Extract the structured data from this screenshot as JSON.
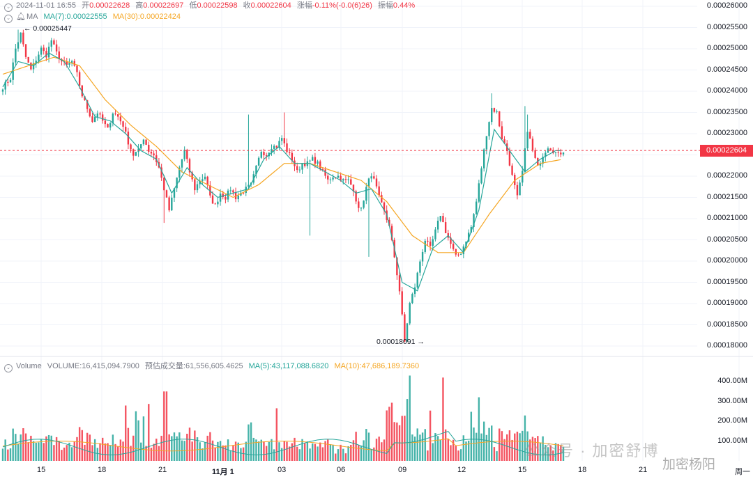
{
  "header": {
    "datetime": "2024-11-01 16:55",
    "open_label": "开",
    "open": "0.00022628",
    "high_label": "高",
    "high": "0.00022697",
    "low_label": "低",
    "low": "0.00022598",
    "close_label": "收",
    "close": "0.00022604",
    "change_label": "涨幅",
    "change": "-0.11%(-0.0(6)26)",
    "amplitude_label": "振幅",
    "amplitude": "0.44%"
  },
  "ma_legend": {
    "label": "MA",
    "ma7": "MA(7):0.00022555",
    "ma30": "MA(30):0.00022424"
  },
  "volume_legend": {
    "label": "Volume",
    "volume": "VOLUME:16,415,094.7900",
    "estimate": "预估成交量:61,556,605.4625",
    "ma5": "MA(5):43,117,088.6820",
    "ma10": "MA(10):47,686,189.7360"
  },
  "annotations": {
    "high_mark": "0.00025447",
    "low_mark": "0.00018091"
  },
  "current_price": "0.00022604",
  "watermark": "公众号 · 加密舒博",
  "watermark2": "加密杨阳",
  "colors": {
    "up": "#26a69a",
    "down": "#f23645",
    "ma7": "#26a69a",
    "ma30": "#f5a623"
  },
  "chart_data": {
    "type": "candlestick",
    "price_axis": {
      "ticks": [
        "0.00026000",
        "0.00025500",
        "0.00025000",
        "0.00024500",
        "0.00024000",
        "0.00023500",
        "0.00023000",
        "0.00022500",
        "0.00022000",
        "0.00021500",
        "0.00021000",
        "0.00020500",
        "0.00020000",
        "0.00019500",
        "0.00019000",
        "0.00018500",
        "0.00018000"
      ],
      "range": [
        0.00018,
        0.00026
      ]
    },
    "volume_axis": {
      "ticks": [
        "400.00M",
        "300.00M",
        "200.00M",
        "100.00M"
      ],
      "range": [
        0,
        400
      ]
    },
    "x_ticks": [
      "15",
      "18",
      "21",
      "11月 1",
      "03",
      "06",
      "09",
      "12",
      "15",
      "18",
      "21",
      "周一"
    ],
    "price_path": [
      [
        0,
        0.000241
      ],
      [
        3,
        0.000243
      ],
      [
        5,
        0.00025
      ],
      [
        7,
        0.0002535
      ],
      [
        9,
        0.000248
      ],
      [
        11,
        0.000245
      ],
      [
        13,
        0.0002475
      ],
      [
        15,
        0.00025
      ],
      [
        17,
        0.0002485
      ],
      [
        19,
        0.000252
      ],
      [
        21,
        0.000249
      ],
      [
        23,
        0.000247
      ],
      [
        25,
        0.000246
      ],
      [
        27,
        0.000247
      ],
      [
        29,
        0.000244
      ],
      [
        31,
        0.000239
      ],
      [
        33,
        0.000236
      ],
      [
        35,
        0.000233
      ],
      [
        37,
        0.000235
      ],
      [
        39,
        0.000233
      ],
      [
        41,
        0.000231
      ],
      [
        43,
        0.000235
      ],
      [
        45,
        0.000234
      ],
      [
        47,
        0.000232
      ],
      [
        49,
        0.000228
      ],
      [
        51,
        0.000225
      ],
      [
        53,
        0.000226
      ],
      [
        55,
        0.000229
      ],
      [
        57,
        0.000226
      ],
      [
        59,
        0.000225
      ],
      [
        61,
        0.000222
      ],
      [
        63,
        0.000217
      ],
      [
        65,
        0.000212
      ],
      [
        67,
        0.000217
      ],
      [
        69,
        0.000222
      ],
      [
        71,
        0.000226
      ],
      [
        73,
        0.000221
      ],
      [
        75,
        0.000217
      ],
      [
        77,
        0.000219
      ],
      [
        79,
        0.00022
      ],
      [
        81,
        0.000215
      ],
      [
        83,
        0.000213
      ],
      [
        85,
        0.000216
      ],
      [
        87,
        0.000215
      ],
      [
        89,
        0.000217
      ],
      [
        91,
        0.000215
      ],
      [
        93,
        0.000216
      ],
      [
        95,
        0.000217
      ],
      [
        97,
        0.000218
      ],
      [
        99,
        0.000222
      ],
      [
        101,
        0.000226
      ],
      [
        103,
        0.000225
      ],
      [
        105,
        0.000227
      ],
      [
        107,
        0.000227
      ],
      [
        109,
        0.000229
      ],
      [
        111,
        0.000226
      ],
      [
        113,
        0.000224
      ],
      [
        115,
        0.000221
      ],
      [
        117,
        0.000223
      ],
      [
        119,
        0.000223
      ],
      [
        121,
        0.000224
      ],
      [
        123,
        0.000223
      ],
      [
        125,
        0.000221
      ],
      [
        127,
        0.000219
      ],
      [
        129,
        0.00022
      ],
      [
        131,
        0.00022
      ],
      [
        133,
        0.000219
      ],
      [
        135,
        0.000219
      ],
      [
        137,
        0.000217
      ],
      [
        139,
        0.000212
      ],
      [
        141,
        0.000214
      ],
      [
        143,
        0.00022
      ],
      [
        145,
        0.000219
      ],
      [
        147,
        0.000215
      ],
      [
        149,
        0.000212
      ],
      [
        151,
        0.000208
      ],
      [
        153,
        0.000201
      ],
      [
        155,
        0.000193
      ],
      [
        157,
        0.000181
      ],
      [
        159,
        0.00019
      ],
      [
        161,
        0.000194
      ],
      [
        163,
        0.0002
      ],
      [
        165,
        0.000205
      ],
      [
        167,
        0.000203
      ],
      [
        169,
        0.000207
      ],
      [
        171,
        0.000211
      ],
      [
        173,
        0.000207
      ],
      [
        175,
        0.000204
      ],
      [
        177,
        0.000201
      ],
      [
        179,
        0.000202
      ],
      [
        181,
        0.000205
      ],
      [
        183,
        0.000208
      ],
      [
        185,
        0.000214
      ],
      [
        187,
        0.000222
      ],
      [
        189,
        0.00023
      ],
      [
        191,
        0.000236
      ],
      [
        193,
        0.000235
      ],
      [
        195,
        0.000229
      ],
      [
        197,
        0.000226
      ],
      [
        199,
        0.00022
      ],
      [
        201,
        0.000215
      ],
      [
        203,
        0.000221
      ],
      [
        205,
        0.000231
      ],
      [
        207,
        0.000226
      ],
      [
        209,
        0.000222
      ],
      [
        211,
        0.000225
      ],
      [
        213,
        0.000227
      ],
      [
        215,
        0.000226
      ],
      [
        217,
        0.000225
      ],
      [
        219,
        0.000226
      ]
    ],
    "ma7_path": [
      [
        0,
        0.000241
      ],
      [
        6,
        0.000247
      ],
      [
        12,
        0.000246
      ],
      [
        18,
        0.000249
      ],
      [
        24,
        0.000247
      ],
      [
        30,
        0.000241
      ],
      [
        36,
        0.000234
      ],
      [
        42,
        0.000233
      ],
      [
        48,
        0.00023
      ],
      [
        54,
        0.000226
      ],
      [
        60,
        0.000224
      ],
      [
        66,
        0.000216
      ],
      [
        72,
        0.000222
      ],
      [
        78,
        0.000218
      ],
      [
        84,
        0.000215
      ],
      [
        90,
        0.000216
      ],
      [
        96,
        0.000217
      ],
      [
        102,
        0.000224
      ],
      [
        108,
        0.000227
      ],
      [
        114,
        0.000223
      ],
      [
        120,
        0.000223
      ],
      [
        126,
        0.000221
      ],
      [
        132,
        0.000219
      ],
      [
        138,
        0.000216
      ],
      [
        144,
        0.000217
      ],
      [
        150,
        0.000211
      ],
      [
        156,
        0.000195
      ],
      [
        162,
        0.000193
      ],
      [
        168,
        0.000203
      ],
      [
        174,
        0.000206
      ],
      [
        180,
        0.000202
      ],
      [
        186,
        0.000212
      ],
      [
        192,
        0.000231
      ],
      [
        198,
        0.000226
      ],
      [
        204,
        0.000221
      ],
      [
        210,
        0.000224
      ],
      [
        216,
        0.000226
      ],
      [
        219,
        0.000226
      ]
    ],
    "ma30_path": [
      [
        0,
        0.000244
      ],
      [
        10,
        0.000246
      ],
      [
        20,
        0.000248
      ],
      [
        30,
        0.000246
      ],
      [
        40,
        0.000238
      ],
      [
        50,
        0.000232
      ],
      [
        60,
        0.000227
      ],
      [
        70,
        0.000221
      ],
      [
        80,
        0.000218
      ],
      [
        90,
        0.000215
      ],
      [
        100,
        0.000218
      ],
      [
        110,
        0.000223
      ],
      [
        120,
        0.000223
      ],
      [
        130,
        0.000221
      ],
      [
        140,
        0.000219
      ],
      [
        150,
        0.000214
      ],
      [
        160,
        0.000206
      ],
      [
        170,
        0.000202
      ],
      [
        180,
        0.000202
      ],
      [
        190,
        0.000211
      ],
      [
        200,
        0.000219
      ],
      [
        210,
        0.000223
      ],
      [
        219,
        0.000224
      ]
    ]
  }
}
